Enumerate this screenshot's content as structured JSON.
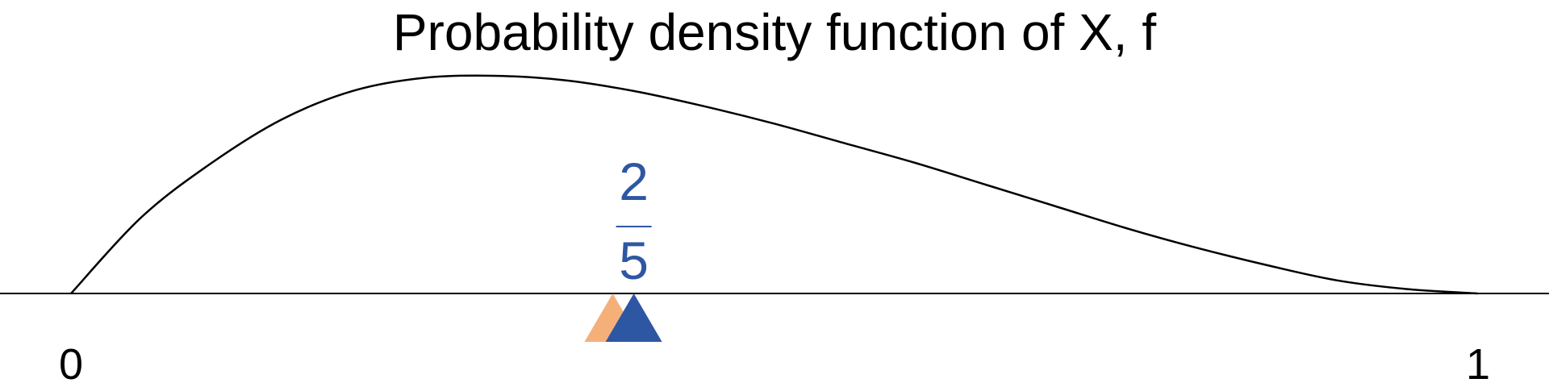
{
  "chart_data": {
    "type": "line",
    "title": "Probability density function of X, f",
    "xlim": [
      0,
      1
    ],
    "x_ticks": [
      "0",
      "1"
    ],
    "curve": {
      "x": [
        0,
        0.05,
        0.1,
        0.15,
        0.2,
        0.25,
        0.3,
        0.35,
        0.4,
        0.45,
        0.5,
        0.55,
        0.6,
        0.65,
        0.7,
        0.75,
        0.8,
        0.85,
        0.9,
        0.95,
        1
      ],
      "y": [
        0,
        0.35,
        0.6,
        0.8,
        0.93,
        0.99,
        1.0,
        0.98,
        0.93,
        0.86,
        0.78,
        0.69,
        0.6,
        0.5,
        0.4,
        0.3,
        0.21,
        0.13,
        0.06,
        0.02,
        0
      ]
    },
    "markers": [
      {
        "x": 0.385,
        "color": "#f5b07a"
      },
      {
        "x": 0.4,
        "color": "#2e57a3"
      }
    ],
    "annotation": {
      "x": 0.4,
      "numerator": "2",
      "denominator": "5",
      "color": "#2e57a3"
    },
    "colors": {
      "curve": "#000000",
      "axis": "#000000"
    }
  }
}
